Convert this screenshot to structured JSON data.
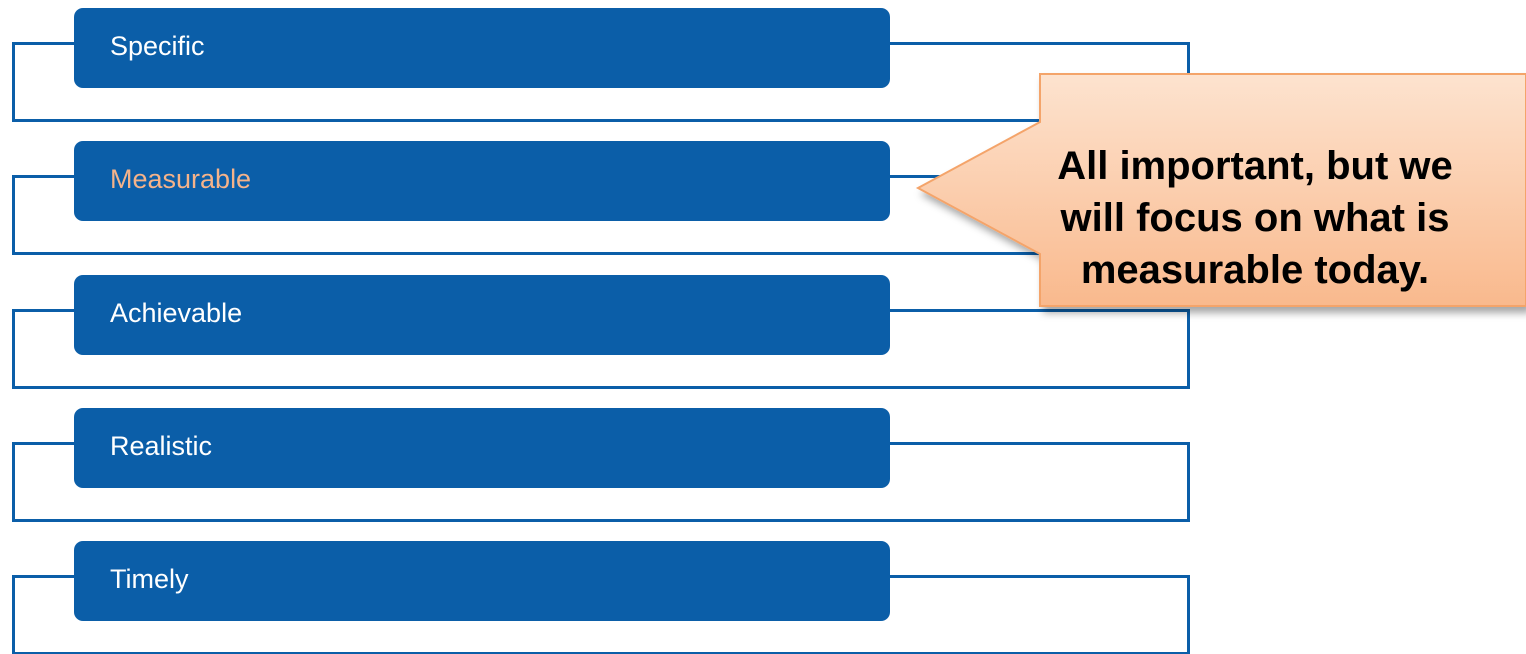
{
  "steps": [
    {
      "label": "Specific"
    },
    {
      "label": "Measurable"
    },
    {
      "label": "Achievable"
    },
    {
      "label": "Realistic"
    },
    {
      "label": "Timely"
    }
  ],
  "highlighted_step": "Measurable",
  "callout": {
    "line1": "All important, but we",
    "line2": "will focus on what is",
    "line3": "measurable today."
  },
  "colors": {
    "step_fill": "#0b5ea8",
    "highlight_text": "#f5b38a",
    "callout_fill_top": "#fde3cf",
    "callout_fill_bottom": "#f9b98d",
    "callout_border": "#f4a46b"
  }
}
